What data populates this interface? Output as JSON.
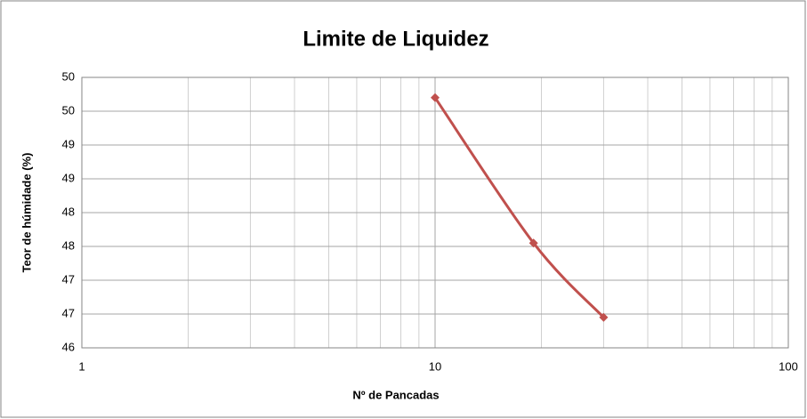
{
  "chart_data": {
    "type": "line",
    "title": "Limite de Liquidez",
    "xlabel": "Nº de Pancadas",
    "ylabel": "Teor de húmidade (%)",
    "xscale": "log",
    "xlim": [
      1,
      100
    ],
    "xticks": [
      1,
      10,
      100
    ],
    "ylim": [
      46,
      50
    ],
    "yticks": [
      46,
      {
        "value": 46.5,
        "label": "47"
      },
      47,
      {
        "value": 47.5,
        "label": "48"
      },
      48,
      {
        "value": 48.5,
        "label": "49"
      },
      49,
      {
        "value": 49.5,
        "label": "50"
      },
      50
    ],
    "grid": true,
    "series": [
      {
        "name": "Teor de húmidade",
        "color": "#c0504d",
        "x": [
          10,
          19,
          30
        ],
        "values": [
          49.7,
          47.55,
          46.45
        ]
      }
    ]
  }
}
